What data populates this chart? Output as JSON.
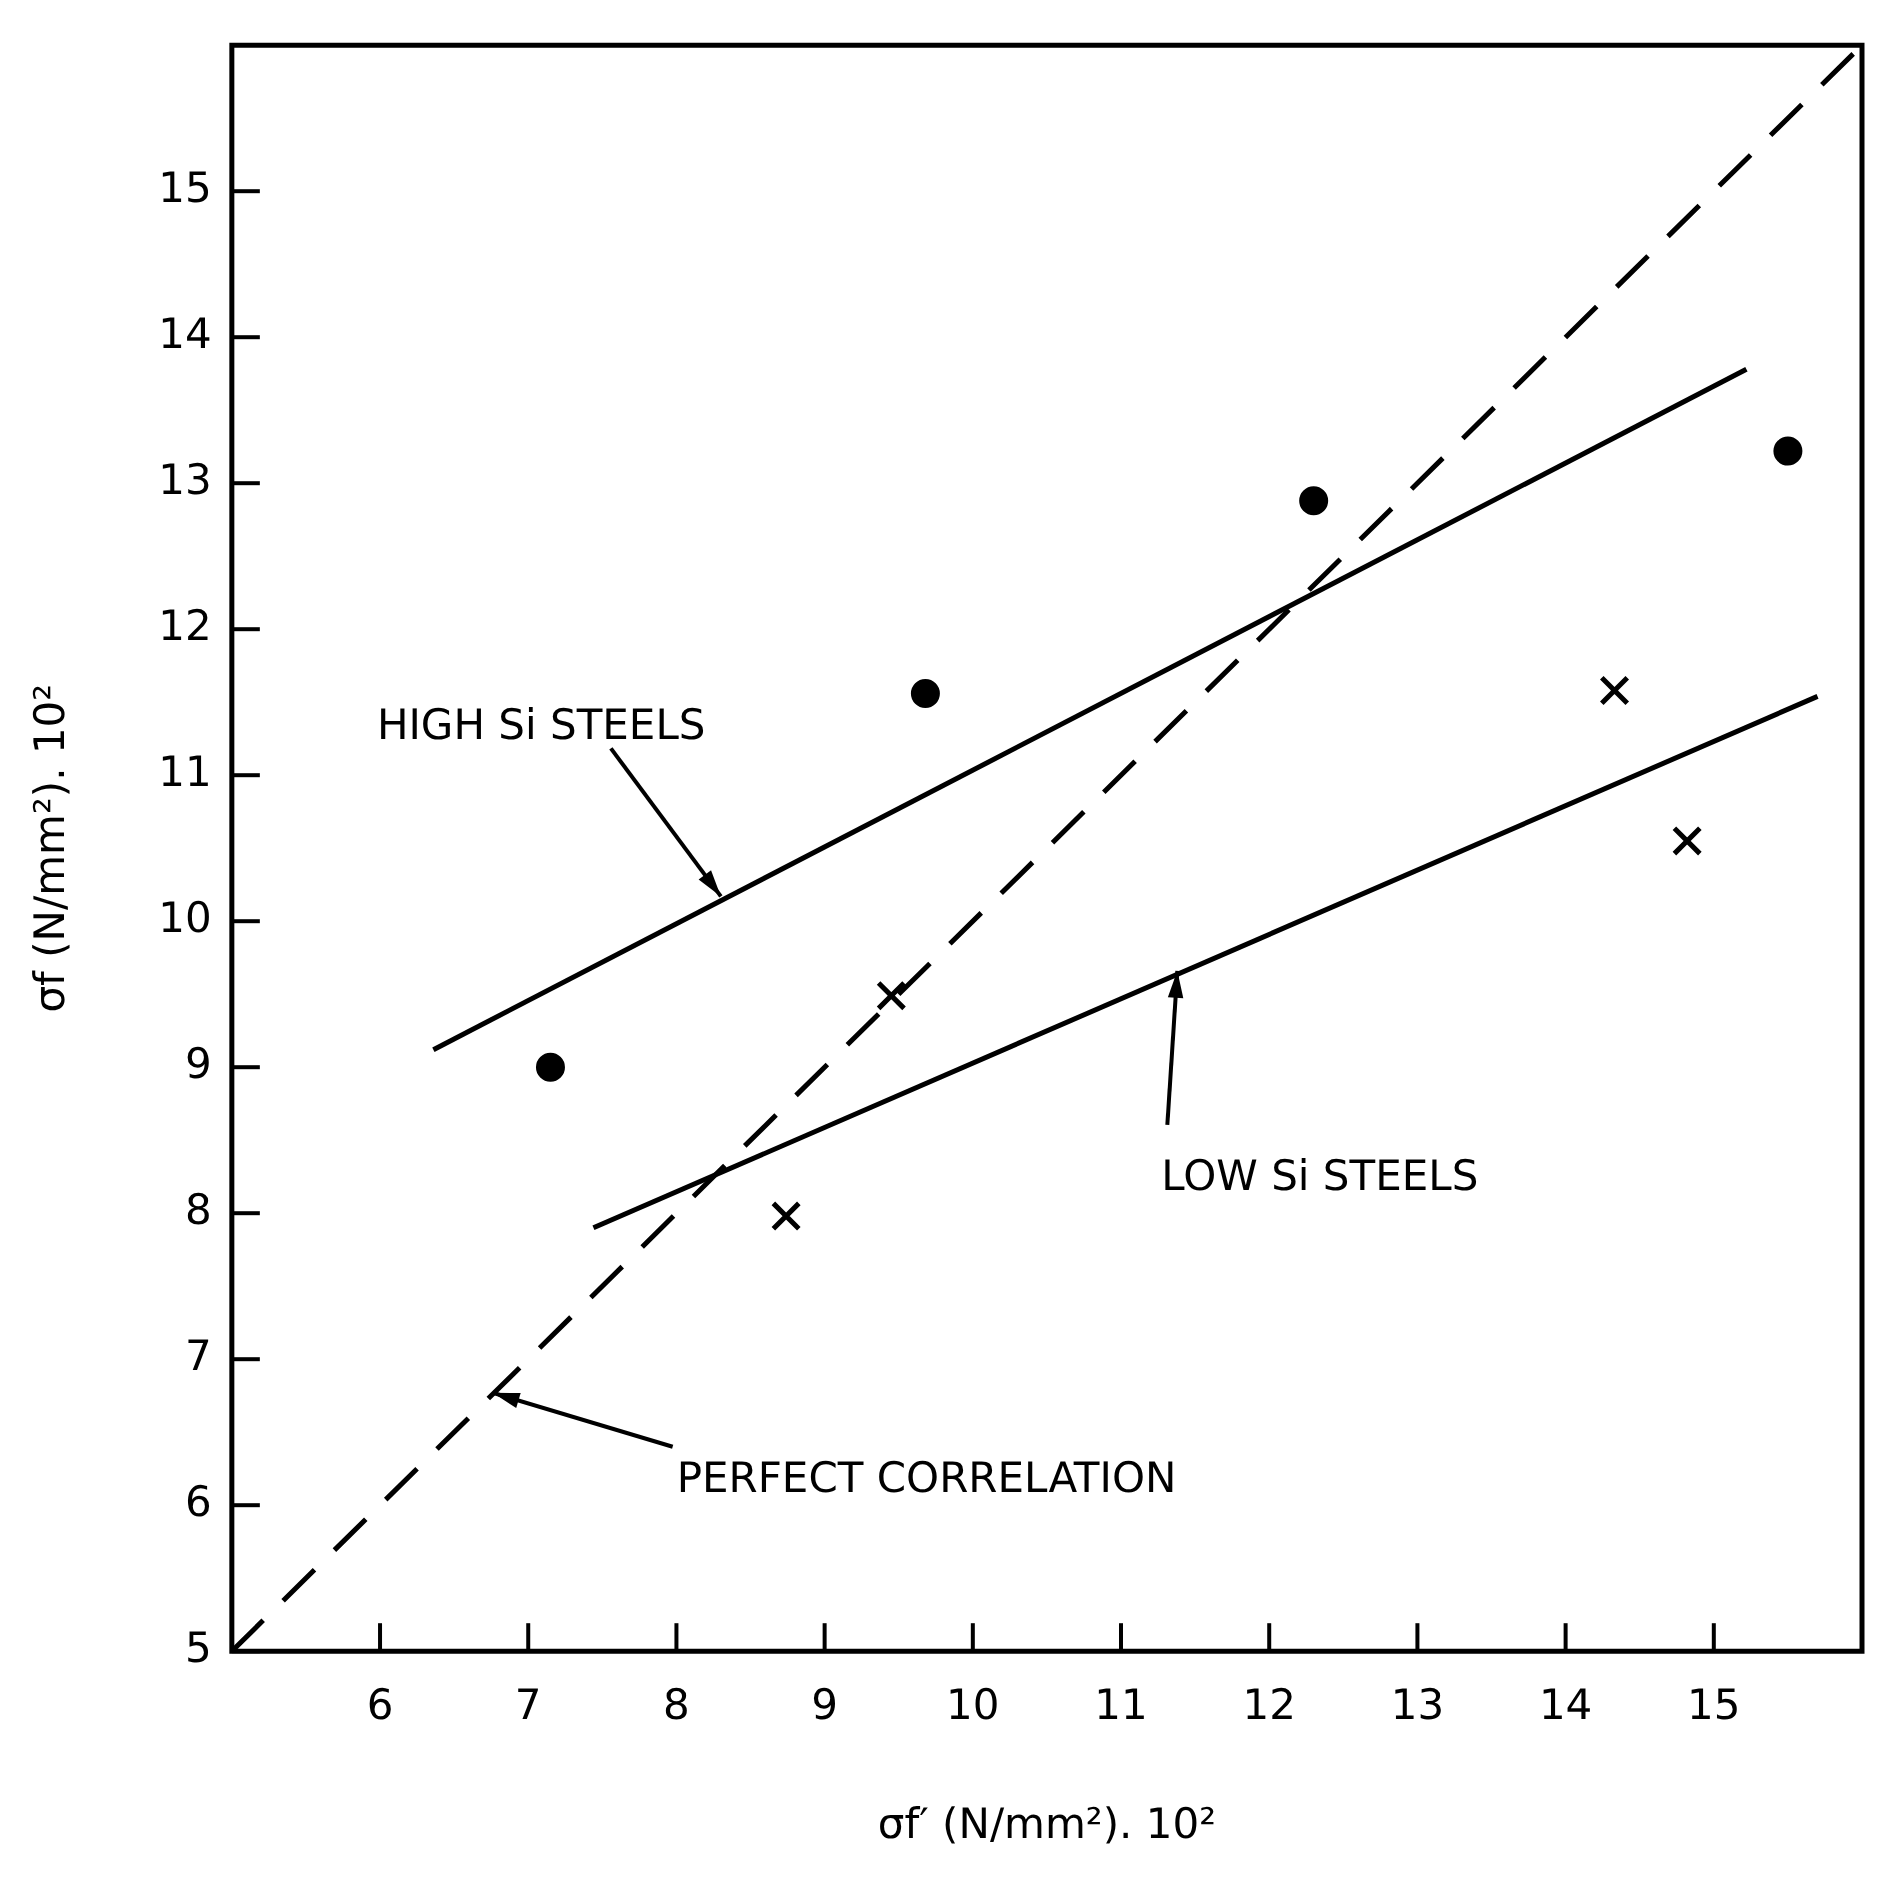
{
  "chart_data": {
    "type": "scatter",
    "xlabel": "σf′ (N/mm²). 10²",
    "ylabel": "σf (N/mm²). 10²",
    "xlim": [
      5,
      16
    ],
    "ylim": [
      5,
      16
    ],
    "xticks": [
      6,
      7,
      8,
      9,
      10,
      11,
      12,
      13,
      14,
      15
    ],
    "yticks": [
      5,
      6,
      7,
      8,
      9,
      10,
      11,
      12,
      13,
      14,
      15
    ],
    "grid": false,
    "legend": false,
    "series": [
      {
        "type": "scatter",
        "color": "#000000",
        "marker": "circle",
        "x": [
          7.15,
          9.68,
          12.3,
          15.5
        ],
        "values": [
          9.0,
          11.56,
          12.88,
          13.22
        ]
      },
      {
        "type": "scatter",
        "color": "#000000",
        "marker": "cross",
        "x": [
          8.74,
          9.45,
          14.33,
          14.82
        ],
        "values": [
          7.98,
          9.49,
          11.58,
          10.55
        ]
      },
      {
        "type": "line",
        "color": "#000000",
        "marker": "none",
        "line_style": "solid",
        "x": [
          6.36,
          15.22
        ],
        "values": [
          9.12,
          13.78
        ]
      },
      {
        "type": "line",
        "color": "#000000",
        "marker": "none",
        "line_style": "solid",
        "x": [
          7.44,
          15.7
        ],
        "values": [
          7.9,
          11.54
        ]
      },
      {
        "type": "line",
        "color": "#000000",
        "marker": "none",
        "line_style": "dashed",
        "x": [
          5,
          16
        ],
        "values": [
          5,
          16
        ]
      }
    ],
    "annotations": [
      {
        "text": "HIGH Si STEELS",
        "x": 8.3,
        "y": 10.17
      },
      {
        "text": "LOW Si STEELS",
        "x": 11.38,
        "y": 9.66
      },
      {
        "text": "PERFECT CORRELATION",
        "x": 6.76,
        "y": 6.77
      }
    ]
  }
}
